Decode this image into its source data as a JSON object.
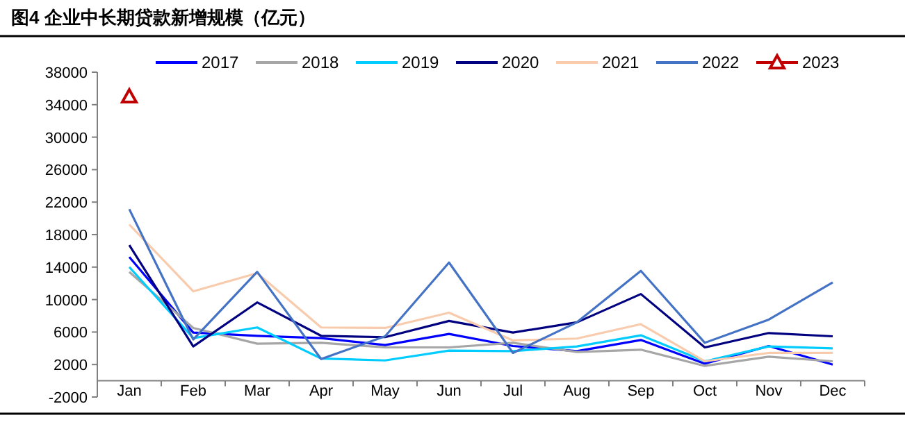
{
  "chart_data": {
    "type": "line",
    "title": "图4  企业中长期贷款新增规模（亿元）",
    "categories": [
      "Jan",
      "Feb",
      "Mar",
      "Apr",
      "May",
      "Jun",
      "Jul",
      "Aug",
      "Sep",
      "Oct",
      "Nov",
      "Dec"
    ],
    "ylim": [
      -2000,
      38000
    ],
    "yticks": [
      -2000,
      2000,
      6000,
      10000,
      14000,
      18000,
      22000,
      26000,
      30000,
      34000,
      38000
    ],
    "grid": false,
    "legend": "top",
    "marker": "none",
    "line_style": "solid",
    "series": [
      {
        "name": "2017",
        "color": "#0000ff",
        "values": [
          15250,
          5940,
          5540,
          5250,
          4400,
          5770,
          4280,
          3650,
          5020,
          2110,
          4280,
          2000
        ]
      },
      {
        "name": "2018",
        "color": "#a6a6a6",
        "values": [
          13400,
          6500,
          4570,
          4680,
          4110,
          4110,
          4680,
          3540,
          3830,
          1830,
          2970,
          2400
        ]
      },
      {
        "name": "2019",
        "color": "#00ccff",
        "values": [
          14000,
          5250,
          6570,
          2740,
          2510,
          3710,
          3650,
          4230,
          5600,
          2400,
          4230,
          4000
        ]
      },
      {
        "name": "2020",
        "color": "#000080",
        "values": [
          16700,
          4230,
          9650,
          5540,
          5370,
          7370,
          5940,
          7200,
          10680,
          4110,
          5880,
          5480
        ]
      },
      {
        "name": "2021",
        "color": "#f8cbad",
        "values": [
          19240,
          11020,
          13250,
          6570,
          6510,
          8390,
          4970,
          5200,
          6970,
          2400,
          3430,
          3430
        ]
      },
      {
        "name": "2022",
        "color": "#4472c4",
        "values": [
          21130,
          5080,
          13420,
          2680,
          5480,
          14560,
          3430,
          7200,
          13530,
          4680,
          7540,
          12110
        ]
      },
      {
        "name": "2023",
        "color": "#c00000",
        "marker": "triangle",
        "values": [
          35000,
          null,
          null,
          null,
          null,
          null,
          null,
          null,
          null,
          null,
          null,
          null
        ]
      }
    ]
  }
}
